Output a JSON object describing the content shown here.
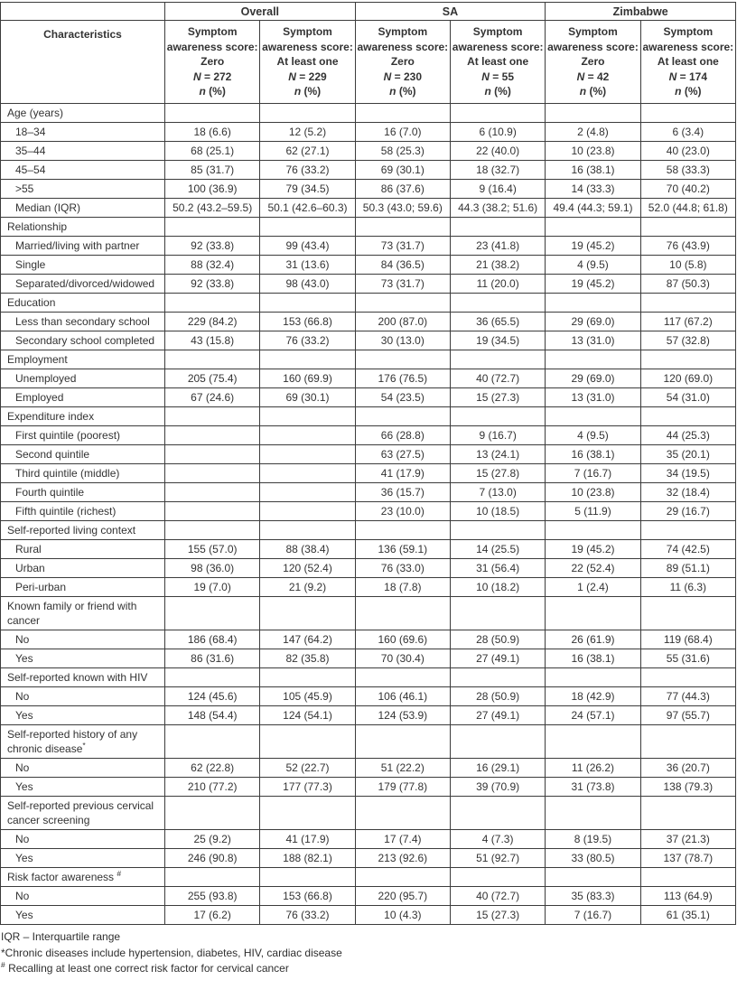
{
  "table": {
    "corner_label": "Characteristics",
    "groups": [
      "Overall",
      "SA",
      "Zimbabwe"
    ],
    "column_headers": [
      {
        "lines": [
          {
            "text": "Symptom"
          },
          {
            "text": "awareness score:"
          },
          {
            "text": "Zero"
          },
          {
            "text": "N = 272",
            "italic_first": true
          },
          {
            "text": "n (%)",
            "italic_first": true
          }
        ]
      },
      {
        "lines": [
          {
            "text": "Symptom"
          },
          {
            "text": "awareness score:"
          },
          {
            "text": "At least one"
          },
          {
            "text": "N = 229",
            "italic_first": true
          },
          {
            "text": "n (%)",
            "italic_first": true
          }
        ]
      },
      {
        "lines": [
          {
            "text": "Symptom"
          },
          {
            "text": "awareness score:"
          },
          {
            "text": "Zero"
          },
          {
            "text": "N = 230",
            "italic_first": true
          },
          {
            "text": "n (%)",
            "italic_first": true
          }
        ]
      },
      {
        "lines": [
          {
            "text": "Symptom"
          },
          {
            "text": "awareness score:"
          },
          {
            "text": "At least one"
          },
          {
            "text": "N = 55",
            "italic_first": true
          },
          {
            "text": "n (%)",
            "italic_first": true
          }
        ]
      },
      {
        "lines": [
          {
            "text": "Symptom"
          },
          {
            "text": "awareness score:"
          },
          {
            "text": "Zero"
          },
          {
            "text": "N = 42",
            "italic_first": true
          },
          {
            "text": "n (%)",
            "italic_first": true
          }
        ]
      },
      {
        "lines": [
          {
            "text": "Symptom"
          },
          {
            "text": "awareness score:"
          },
          {
            "text": "At least one"
          },
          {
            "text": "N = 174",
            "italic_first": true
          },
          {
            "text": "n (%)",
            "italic_first": true
          }
        ]
      }
    ],
    "sections": [
      {
        "label": "Age (years)",
        "rows": [
          {
            "label": "18–34",
            "values": [
              "18 (6.6)",
              "12 (5.2)",
              "16 (7.0)",
              "6 (10.9)",
              "2 (4.8)",
              "6 (3.4)"
            ]
          },
          {
            "label": "35–44",
            "values": [
              "68 (25.1)",
              "62 (27.1)",
              "58 (25.3)",
              "22 (40.0)",
              "10 (23.8)",
              "40 (23.0)"
            ]
          },
          {
            "label": "45–54",
            "values": [
              "85 (31.7)",
              "76 (33.2)",
              "69 (30.1)",
              "18 (32.7)",
              "16 (38.1)",
              "58 (33.3)"
            ]
          },
          {
            "label": ">55",
            "values": [
              "100 (36.9)",
              "79 (34.5)",
              "86 (37.6)",
              "9 (16.4)",
              "14 (33.3)",
              "70 (40.2)"
            ]
          },
          {
            "label": "Median (IQR)",
            "values": [
              "50.2 (43.2–59.5)",
              "50.1 (42.6–60.3)",
              "50.3 (43.0; 59.6)",
              "44.3 (38.2; 51.6)",
              "49.4 (44.3; 59.1)",
              "52.0 (44.8; 61.8)"
            ]
          }
        ]
      },
      {
        "label": "Relationship",
        "rows": [
          {
            "label": "Married/living with partner",
            "values": [
              "92 (33.8)",
              "99 (43.4)",
              "73 (31.7)",
              "23 (41.8)",
              "19 (45.2)",
              "76 (43.9)"
            ]
          },
          {
            "label": "Single",
            "values": [
              "88 (32.4)",
              "31 (13.6)",
              "84 (36.5)",
              "21 (38.2)",
              "4 (9.5)",
              "10 (5.8)"
            ]
          },
          {
            "label": "Separated/divorced/widowed",
            "values": [
              "92 (33.8)",
              "98 (43.0)",
              "73 (31.7)",
              "11 (20.0)",
              "19 (45.2)",
              "87 (50.3)"
            ]
          }
        ]
      },
      {
        "label": "Education",
        "rows": [
          {
            "label": "Less than secondary school",
            "values": [
              "229 (84.2)",
              "153 (66.8)",
              "200 (87.0)",
              "36 (65.5)",
              "29 (69.0)",
              "117 (67.2)"
            ]
          },
          {
            "label": "Secondary school completed",
            "values": [
              "43 (15.8)",
              "76 (33.2)",
              "30 (13.0)",
              "19 (34.5)",
              "13 (31.0)",
              "57 (32.8)"
            ]
          }
        ]
      },
      {
        "label": "Employment",
        "rows": [
          {
            "label": "Unemployed",
            "values": [
              "205 (75.4)",
              "160 (69.9)",
              "176 (76.5)",
              "40 (72.7)",
              "29 (69.0)",
              "120 (69.0)"
            ]
          },
          {
            "label": "Employed",
            "values": [
              "67 (24.6)",
              "69 (30.1)",
              "54 (23.5)",
              "15 (27.3)",
              "13 (31.0)",
              "54 (31.0)"
            ]
          }
        ]
      },
      {
        "label": "Expenditure index",
        "rows": [
          {
            "label": "First quintile (poorest)",
            "values": [
              "",
              "",
              "66 (28.8)",
              "9 (16.7)",
              "4 (9.5)",
              "44 (25.3)"
            ]
          },
          {
            "label": "Second quintile",
            "values": [
              "",
              "",
              "63 (27.5)",
              "13 (24.1)",
              "16 (38.1)",
              "35 (20.1)"
            ]
          },
          {
            "label": "Third quintile (middle)",
            "values": [
              "",
              "",
              "41 (17.9)",
              "15 (27.8)",
              "7 (16.7)",
              "34 (19.5)"
            ]
          },
          {
            "label": "Fourth quintile",
            "values": [
              "",
              "",
              "36 (15.7)",
              "7 (13.0)",
              "10 (23.8)",
              "32 (18.4)"
            ]
          },
          {
            "label": "Fifth quintile (richest)",
            "values": [
              "",
              "",
              "23 (10.0)",
              "10 (18.5)",
              "5 (11.9)",
              "29 (16.7)"
            ]
          }
        ]
      },
      {
        "label": "Self-reported living context",
        "rows": [
          {
            "label": "Rural",
            "values": [
              "155 (57.0)",
              "88 (38.4)",
              "136 (59.1)",
              "14 (25.5)",
              "19 (45.2)",
              "74 (42.5)"
            ]
          },
          {
            "label": "Urban",
            "values": [
              "98 (36.0)",
              "120 (52.4)",
              "76 (33.0)",
              "31 (56.4)",
              "22 (52.4)",
              "89 (51.1)"
            ]
          },
          {
            "label": "Peri-urban",
            "values": [
              "19 (7.0)",
              "21 (9.2)",
              "18 (7.8)",
              "10 (18.2)",
              "1 (2.4)",
              "11 (6.3)"
            ]
          }
        ]
      },
      {
        "label": "Known family or friend with cancer",
        "rows": [
          {
            "label": "No",
            "values": [
              "186 (68.4)",
              "147 (64.2)",
              "160 (69.6)",
              "28 (50.9)",
              "26 (61.9)",
              "119 (68.4)"
            ]
          },
          {
            "label": "Yes",
            "values": [
              "86 (31.6)",
              "82 (35.8)",
              "70 (30.4)",
              "27 (49.1)",
              "16 (38.1)",
              "55 (31.6)"
            ]
          }
        ]
      },
      {
        "label": "Self-reported known with HIV",
        "rows": [
          {
            "label": "No",
            "values": [
              "124 (45.6)",
              "105 (45.9)",
              "106 (46.1)",
              "28 (50.9)",
              "18 (42.9)",
              "77 (44.3)"
            ]
          },
          {
            "label": "Yes",
            "values": [
              "148 (54.4)",
              "124 (54.1)",
              "124 (53.9)",
              "27 (49.1)",
              "24 (57.1)",
              "97 (55.7)"
            ]
          }
        ]
      },
      {
        "label": "Self-reported history of any chronic disease",
        "sup": "*",
        "rows": [
          {
            "label": "No",
            "values": [
              "62 (22.8)",
              "52 (22.7)",
              "51 (22.2)",
              "16 (29.1)",
              "11 (26.2)",
              "36 (20.7)"
            ]
          },
          {
            "label": "Yes",
            "values": [
              "210 (77.2)",
              "177 (77.3)",
              "179 (77.8)",
              "39 (70.9)",
              "31 (73.8)",
              "138 (79.3)"
            ]
          }
        ]
      },
      {
        "label": "Self-reported previous cervical cancer screening",
        "rows": [
          {
            "label": "No",
            "values": [
              "25 (9.2)",
              "41 (17.9)",
              "17 (7.4)",
              "4 (7.3)",
              "8 (19.5)",
              "37 (21.3)"
            ]
          },
          {
            "label": "Yes",
            "values": [
              "246 (90.8)",
              "188 (82.1)",
              "213 (92.6)",
              "51 (92.7)",
              "33 (80.5)",
              "137 (78.7)"
            ]
          }
        ]
      },
      {
        "label": "Risk factor awareness ",
        "sup": "#",
        "rows": [
          {
            "label": "No",
            "values": [
              "255 (93.8)",
              "153 (66.8)",
              "220 (95.7)",
              "40 (72.7)",
              "35 (83.3)",
              "113 (64.9)"
            ]
          },
          {
            "label": "Yes",
            "values": [
              "17 (6.2)",
              "76 (33.2)",
              "10 (4.3)",
              "15 (27.3)",
              "7 (16.7)",
              "61 (35.1)"
            ]
          }
        ]
      }
    ]
  },
  "footnotes": [
    {
      "sup": "",
      "text": "IQR – Interquartile range"
    },
    {
      "sup": "",
      "text": "*Chronic diseases include hypertension, diabetes, HIV, cardiac disease"
    },
    {
      "sup": "#",
      "text": " Recalling at least one correct risk factor for cervical cancer"
    }
  ]
}
